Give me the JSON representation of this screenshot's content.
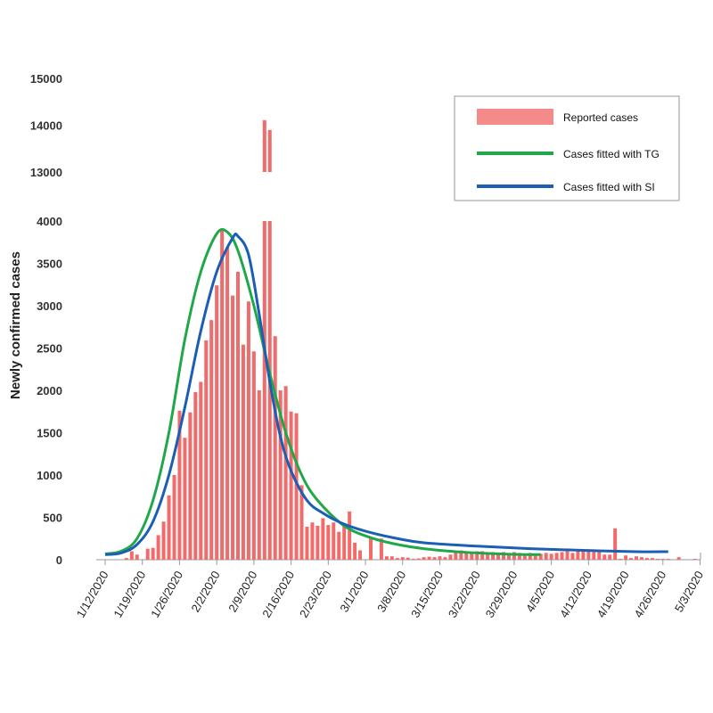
{
  "chart_data": {
    "type": "bar",
    "title": "",
    "xlabel": "",
    "ylabel": "Newly confirmed cases",
    "x_start_date": "1/12/2020",
    "x_tick_labels": [
      "1/12/2020",
      "1/19/2020",
      "1/26/2020",
      "2/2/2020",
      "2/9/2020",
      "2/16/2020",
      "2/23/2020",
      "3/1/2020",
      "3/8/2020",
      "3/15/2020",
      "3/22/2020",
      "3/29/2020",
      "4/5/2020",
      "4/12/2020",
      "4/19/2020",
      "4/26/2020",
      "5/3/2020"
    ],
    "y_tick_labels_lower": [
      "0",
      "500",
      "1000",
      "1500",
      "2000",
      "2500",
      "3000",
      "3500",
      "4000"
    ],
    "y_tick_labels_upper": [
      "13000",
      "14000",
      "15000"
    ],
    "y_axis_break": [
      4000,
      13000
    ],
    "ylim": [
      0,
      15000
    ],
    "grid": false,
    "legend_position": "top-right",
    "series": [
      {
        "name": "Reported cases",
        "kind": "bar",
        "color": "#f26b6b",
        "legend_color": "#f48a8a",
        "values": [
          0,
          0,
          0,
          0,
          20,
          100,
          60,
          0,
          130,
          140,
          290,
          450,
          760,
          1000,
          1760,
          1440,
          1740,
          1980,
          2100,
          2590,
          2830,
          3240,
          3890,
          3690,
          3120,
          3400,
          2540,
          3050,
          2460,
          2000,
          14108,
          13900,
          2640,
          2000,
          2050,
          1750,
          1730,
          880,
          390,
          440,
          400,
          490,
          410,
          440,
          330,
          400,
          570,
          200,
          110,
          0,
          250,
          0,
          250,
          40,
          40,
          20,
          30,
          25,
          10,
          15,
          30,
          35,
          30,
          40,
          30,
          60,
          100,
          110,
          100,
          90,
          100,
          100,
          90,
          90,
          80,
          90,
          80,
          90,
          80,
          70,
          80,
          70,
          70,
          80,
          70,
          80,
          90,
          100,
          80,
          110,
          110,
          100,
          90,
          100,
          60,
          60,
          370,
          10,
          50,
          20,
          40,
          30,
          20,
          20,
          10,
          10,
          10,
          0,
          30,
          0,
          0,
          10
        ]
      },
      {
        "name": "Cases fitted with TG",
        "kind": "line",
        "color": "#1fa84a",
        "points": [
          [
            0,
            70
          ],
          [
            3,
            100
          ],
          [
            6,
            250
          ],
          [
            9,
            700
          ],
          [
            12,
            1500
          ],
          [
            15,
            2600
          ],
          [
            18,
            3400
          ],
          [
            21,
            3850
          ],
          [
            23,
            3870
          ],
          [
            25,
            3650
          ],
          [
            28,
            3000
          ],
          [
            31,
            2200
          ],
          [
            34,
            1500
          ],
          [
            37,
            1000
          ],
          [
            40,
            700
          ],
          [
            45,
            400
          ],
          [
            50,
            260
          ],
          [
            55,
            180
          ],
          [
            60,
            130
          ],
          [
            65,
            100
          ],
          [
            70,
            80
          ],
          [
            76,
            65
          ],
          [
            82,
            60
          ]
        ]
      },
      {
        "name": "Cases fitted with SI",
        "kind": "line",
        "color": "#1a5fb4",
        "points": [
          [
            0,
            60
          ],
          [
            3,
            80
          ],
          [
            6,
            180
          ],
          [
            9,
            450
          ],
          [
            12,
            1000
          ],
          [
            15,
            1800
          ],
          [
            18,
            2700
          ],
          [
            21,
            3400
          ],
          [
            24,
            3800
          ],
          [
            25,
            3820
          ],
          [
            27,
            3600
          ],
          [
            29,
            2900
          ],
          [
            31,
            2100
          ],
          [
            33,
            1450
          ],
          [
            35,
            1050
          ],
          [
            38,
            700
          ],
          [
            41,
            550
          ],
          [
            45,
            420
          ],
          [
            50,
            320
          ],
          [
            55,
            250
          ],
          [
            60,
            200
          ],
          [
            70,
            160
          ],
          [
            80,
            130
          ],
          [
            90,
            110
          ],
          [
            100,
            95
          ],
          [
            106,
            95
          ]
        ]
      }
    ]
  }
}
